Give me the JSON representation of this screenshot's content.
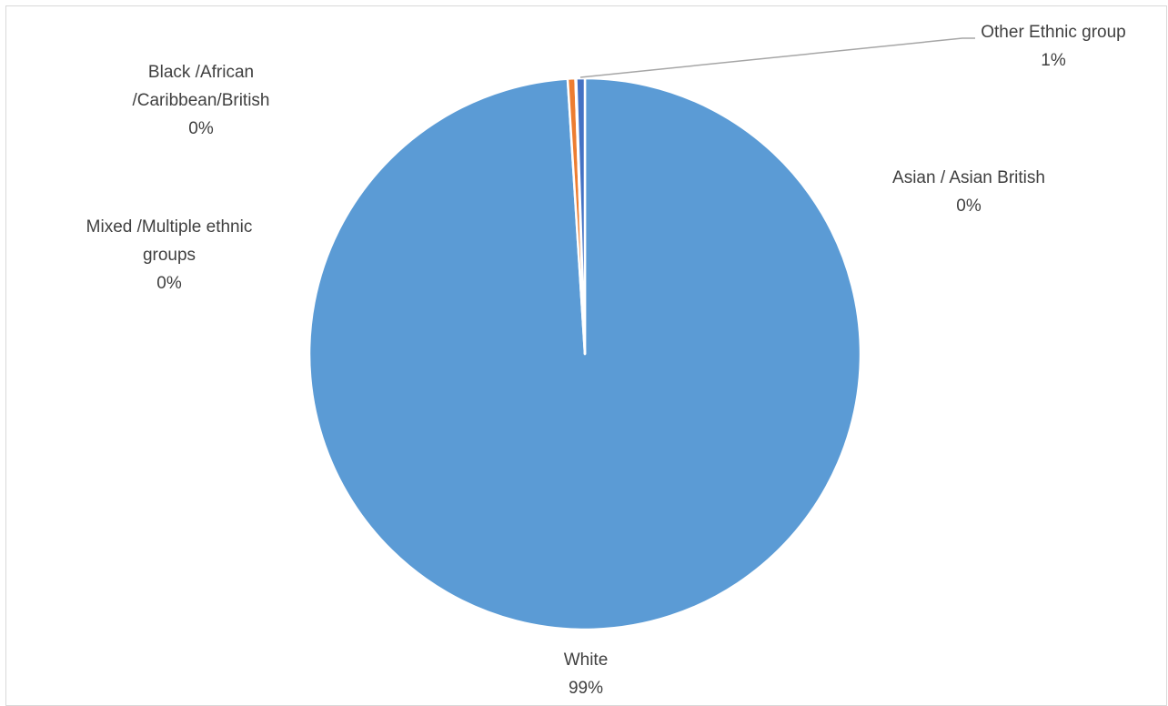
{
  "chart_data": {
    "type": "pie",
    "title": "",
    "categories": [
      "White",
      "Mixed /Multiple ethnic groups",
      "Black /African /Caribbean/British",
      "Asian / Asian British",
      "Other Ethnic group"
    ],
    "values": [
      99.0,
      0.0,
      0.45,
      0.05,
      0.5
    ],
    "percent_labels": [
      "99%",
      "0%",
      "0%",
      "0%",
      "1%"
    ],
    "colors": [
      "#5b9bd5",
      "#a5a5a5",
      "#ed7d31",
      "#ffc000",
      "#4472c4"
    ],
    "slice_border_color": "#ffffff",
    "leader_line_color": "#a6a6a6",
    "label_color": "#404040",
    "legend": "none",
    "start_angle_deg": 0,
    "direction": "clockwise"
  },
  "labels": {
    "white": {
      "line1": "White",
      "pct": "99%"
    },
    "mixed": {
      "line1": "Mixed /Multiple ethnic",
      "line2": "groups",
      "pct": "0%"
    },
    "black": {
      "line1": "Black /African",
      "line2": "/Caribbean/British",
      "pct": "0%"
    },
    "asian": {
      "line1": "Asian / Asian British",
      "pct": "0%"
    },
    "other": {
      "line1": "Other Ethnic group",
      "pct": "1%"
    }
  }
}
